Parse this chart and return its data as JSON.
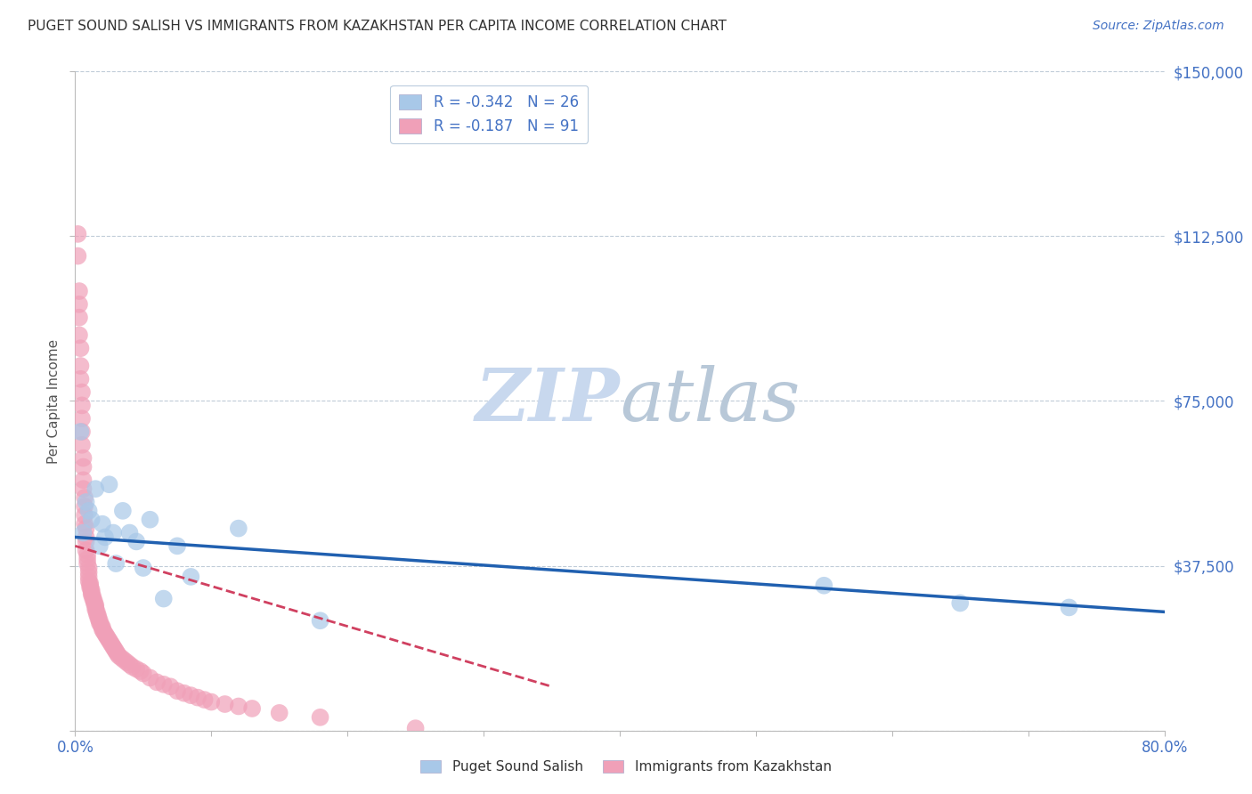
{
  "title": "PUGET SOUND SALISH VS IMMIGRANTS FROM KAZAKHSTAN PER CAPITA INCOME CORRELATION CHART",
  "source": "Source: ZipAtlas.com",
  "ylabel": "Per Capita Income",
  "xlim": [
    0,
    0.8
  ],
  "ylim": [
    0,
    150000
  ],
  "yticks": [
    0,
    37500,
    75000,
    112500,
    150000
  ],
  "xticks": [
    0.0,
    0.1,
    0.2,
    0.3,
    0.4,
    0.5,
    0.6,
    0.7,
    0.8
  ],
  "blue_color": "#A8C8E8",
  "pink_color": "#F0A0B8",
  "blue_line_color": "#2060B0",
  "pink_line_color": "#D04060",
  "axis_color": "#4472C4",
  "watermark_color": "#C8D8EE",
  "blue_scatter_x": [
    0.004,
    0.006,
    0.008,
    0.01,
    0.012,
    0.015,
    0.018,
    0.02,
    0.022,
    0.025,
    0.028,
    0.03,
    0.035,
    0.04,
    0.045,
    0.05,
    0.055,
    0.065,
    0.075,
    0.085,
    0.12,
    0.18,
    0.55,
    0.65,
    0.73
  ],
  "blue_scatter_y": [
    68000,
    45000,
    52000,
    50000,
    48000,
    55000,
    42000,
    47000,
    44000,
    56000,
    45000,
    38000,
    50000,
    45000,
    43000,
    37000,
    48000,
    30000,
    42000,
    35000,
    46000,
    25000,
    33000,
    29000,
    28000
  ],
  "pink_scatter_x": [
    0.002,
    0.002,
    0.003,
    0.003,
    0.003,
    0.003,
    0.004,
    0.004,
    0.004,
    0.005,
    0.005,
    0.005,
    0.005,
    0.005,
    0.006,
    0.006,
    0.006,
    0.006,
    0.007,
    0.007,
    0.007,
    0.007,
    0.008,
    0.008,
    0.008,
    0.008,
    0.009,
    0.009,
    0.009,
    0.01,
    0.01,
    0.01,
    0.01,
    0.011,
    0.011,
    0.011,
    0.012,
    0.012,
    0.012,
    0.013,
    0.013,
    0.014,
    0.014,
    0.015,
    0.015,
    0.015,
    0.016,
    0.016,
    0.017,
    0.017,
    0.018,
    0.018,
    0.019,
    0.02,
    0.02,
    0.021,
    0.022,
    0.023,
    0.024,
    0.025,
    0.026,
    0.027,
    0.028,
    0.029,
    0.03,
    0.031,
    0.032,
    0.034,
    0.036,
    0.038,
    0.04,
    0.042,
    0.045,
    0.048,
    0.05,
    0.055,
    0.06,
    0.065,
    0.07,
    0.075,
    0.08,
    0.085,
    0.09,
    0.095,
    0.1,
    0.11,
    0.12,
    0.13,
    0.15,
    0.18,
    0.25
  ],
  "pink_scatter_y": [
    113000,
    108000,
    100000,
    97000,
    94000,
    90000,
    87000,
    83000,
    80000,
    77000,
    74000,
    71000,
    68000,
    65000,
    62000,
    60000,
    57000,
    55000,
    53000,
    51000,
    49000,
    47000,
    46000,
    44000,
    43000,
    41000,
    40000,
    39000,
    38000,
    37000,
    36000,
    35000,
    34000,
    33500,
    33000,
    32500,
    32000,
    31500,
    31000,
    30500,
    30000,
    29500,
    29000,
    28500,
    28000,
    27500,
    27000,
    26500,
    26000,
    25500,
    25000,
    24500,
    24000,
    23500,
    23000,
    22500,
    22000,
    21500,
    21000,
    20500,
    20000,
    19500,
    19000,
    18500,
    18000,
    17500,
    17000,
    16500,
    16000,
    15500,
    15000,
    14500,
    14000,
    13500,
    13000,
    12000,
    11000,
    10500,
    10000,
    9000,
    8500,
    8000,
    7500,
    7000,
    6500,
    6000,
    5500,
    5000,
    4000,
    3000,
    500
  ],
  "blue_trend_x": [
    0.0,
    0.8
  ],
  "blue_trend_y": [
    44000,
    27000
  ],
  "pink_trend_x": [
    0.0,
    0.35
  ],
  "pink_trend_y": [
    42000,
    10000
  ]
}
